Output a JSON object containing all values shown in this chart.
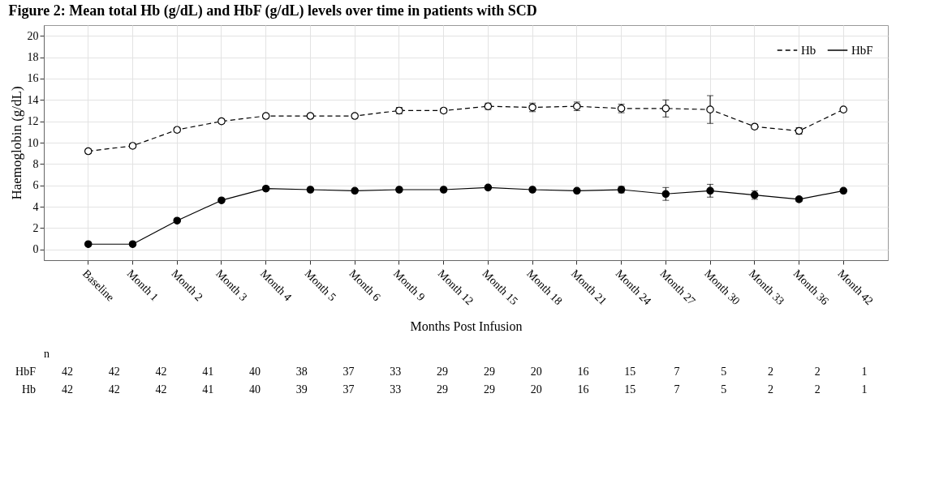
{
  "chart_data": {
    "type": "line",
    "title": "Figure 2: Mean total Hb (g/dL) and HbF (g/dL) levels over time in patients with SCD",
    "xlabel": "Months Post Infusion",
    "ylabel": "Haemoglobin (g/dL)",
    "categories": [
      "Baseline",
      "Month 1",
      "Month 2",
      "Month 3",
      "Month 4",
      "Month 5",
      "Month 6",
      "Month 9",
      "Month 12",
      "Month 15",
      "Month 18",
      "Month 21",
      "Month 24",
      "Month 27",
      "Month 30",
      "Month 33",
      "Month 36",
      "Month 42"
    ],
    "ylim": [
      -1,
      21
    ],
    "yticks": [
      0,
      2,
      4,
      6,
      8,
      10,
      12,
      14,
      16,
      18,
      20
    ],
    "grid": true,
    "legend": "top right",
    "marker": "circle",
    "series": [
      {
        "name": "Hb",
        "color": "#000000",
        "line_style": "dashed",
        "values": [
          9.2,
          9.7,
          11.2,
          12.0,
          12.5,
          12.5,
          12.5,
          13.0,
          13.0,
          13.4,
          13.3,
          13.4,
          13.2,
          13.2,
          13.1,
          11.5,
          11.1,
          13.1
        ],
        "errors": [
          0.2,
          0.2,
          0.2,
          0.2,
          0.2,
          0.2,
          0.2,
          0.3,
          0.2,
          0.3,
          0.4,
          0.4,
          0.4,
          0.8,
          1.3,
          0.2,
          0.3,
          null
        ]
      },
      {
        "name": "HbF",
        "color": "#000000",
        "line_style": "solid",
        "values": [
          0.5,
          0.5,
          2.7,
          4.6,
          5.7,
          5.6,
          5.5,
          5.6,
          5.6,
          5.8,
          5.6,
          5.5,
          5.6,
          5.2,
          5.5,
          5.1,
          4.7,
          5.5
        ],
        "errors": [
          null,
          null,
          null,
          null,
          null,
          null,
          null,
          null,
          null,
          null,
          null,
          null,
          0.3,
          0.6,
          0.6,
          0.4,
          0.2,
          null
        ]
      }
    ],
    "annotations": [
      "n",
      "HbF",
      "42",
      "42",
      "42",
      "41",
      "40",
      "38",
      "37",
      "33",
      "29",
      "29",
      "20",
      "16",
      "15",
      "7",
      "5",
      "2",
      "2",
      "1",
      "Hb",
      "42",
      "42",
      "42",
      "41",
      "40",
      "39",
      "37",
      "33",
      "29",
      "29",
      "20",
      "16",
      "15",
      "7",
      "5",
      "2",
      "2",
      "1"
    ]
  }
}
